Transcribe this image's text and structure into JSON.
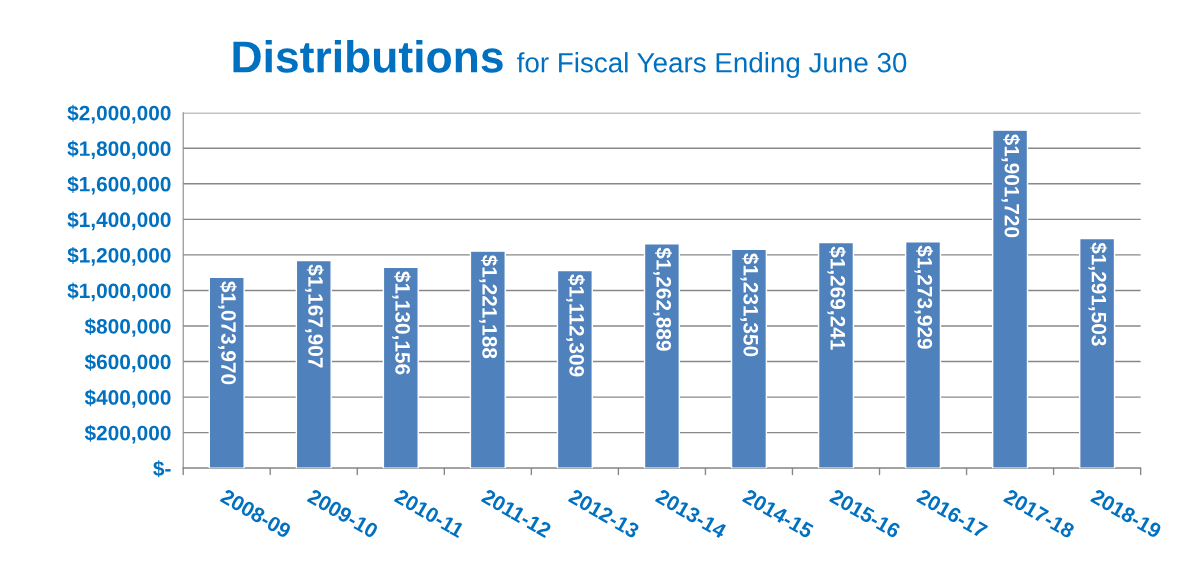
{
  "chart_data": {
    "type": "bar",
    "title": "Distributions",
    "subtitle": "for Fiscal Years Ending June 30",
    "categories": [
      "2008-09",
      "2009-10",
      "2010-11",
      "2011-12",
      "2012-13",
      "2013-14",
      "2014-15",
      "2015-16",
      "2016-17",
      "2017-18",
      "2018-19"
    ],
    "values": [
      1073970,
      1167907,
      1130156,
      1221188,
      1112309,
      1262889,
      1231350,
      1269241,
      1273929,
      1901720,
      1291503
    ],
    "value_labels": [
      "$1,073,970",
      "$1,167,907",
      "$1,130,156",
      "$1,221,188",
      "$1,112,309",
      "$1,262,889",
      "$1,231,350",
      "$1,269,241",
      "$1,273,929",
      "$1,901,720",
      "$1,291,503"
    ],
    "color": "#4f81bd",
    "ylim": [
      0,
      2000000
    ],
    "yticks": [
      {
        "value": 0,
        "label": "$-"
      },
      {
        "value": 200000,
        "label": "$200,000"
      },
      {
        "value": 400000,
        "label": "$400,000"
      },
      {
        "value": 600000,
        "label": "$600,000"
      },
      {
        "value": 800000,
        "label": "$800,000"
      },
      {
        "value": 1000000,
        "label": "$1,000,000"
      },
      {
        "value": 1200000,
        "label": "$1,200,000"
      },
      {
        "value": 1400000,
        "label": "$1,400,000"
      },
      {
        "value": 1600000,
        "label": "$1,600,000"
      },
      {
        "value": 1800000,
        "label": "$1,800,000"
      },
      {
        "value": 2000000,
        "label": "$2,000,000"
      }
    ],
    "grid": "y",
    "legend": false
  }
}
